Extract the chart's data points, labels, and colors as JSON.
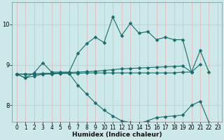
{
  "xlabel": "Humidex (Indice chaleur)",
  "background_color": "#cce8e8",
  "grid_color_v": "#e8b0b0",
  "grid_color_h": "#b0d0d0",
  "line_color": "#1a6b6b",
  "xlim": [
    -0.5,
    23.5
  ],
  "ylim": [
    7.6,
    10.55
  ],
  "xticks": [
    0,
    1,
    2,
    3,
    4,
    5,
    6,
    7,
    8,
    9,
    10,
    11,
    12,
    13,
    14,
    15,
    16,
    17,
    18,
    19,
    20,
    21,
    22,
    23
  ],
  "yticks": [
    8,
    9,
    10
  ],
  "x_vals": [
    0,
    1,
    2,
    3,
    4,
    5,
    6,
    7,
    8,
    9,
    10,
    11,
    12,
    13,
    14,
    15,
    16,
    17,
    18,
    19,
    20,
    21,
    22,
    23
  ],
  "line_max": [
    8.77,
    8.68,
    8.8,
    9.05,
    8.82,
    8.82,
    8.82,
    9.28,
    9.52,
    9.68,
    9.55,
    10.18,
    9.72,
    10.02,
    9.78,
    9.82,
    9.62,
    9.68,
    9.62,
    9.62,
    8.82,
    9.35,
    8.82,
    null
  ],
  "line_mean": [
    8.77,
    8.77,
    8.77,
    8.77,
    8.79,
    8.8,
    8.81,
    8.82,
    8.83,
    8.84,
    8.86,
    8.88,
    8.9,
    8.91,
    8.92,
    8.93,
    8.94,
    8.95,
    8.96,
    8.97,
    8.82,
    9.01,
    null,
    null
  ],
  "line_upper": [
    8.77,
    8.77,
    8.77,
    8.79,
    8.79,
    8.79,
    8.79,
    8.79,
    8.8,
    8.8,
    8.8,
    8.8,
    8.8,
    8.8,
    8.8,
    8.8,
    8.8,
    8.8,
    8.8,
    8.82,
    8.82,
    null,
    null,
    null
  ],
  "line_min": [
    8.77,
    8.68,
    8.72,
    8.77,
    8.77,
    8.79,
    8.79,
    8.5,
    8.28,
    8.06,
    7.88,
    7.74,
    7.62,
    7.58,
    7.56,
    7.62,
    7.7,
    7.72,
    7.74,
    7.76,
    8.0,
    8.1,
    7.58,
    null
  ],
  "marker": "D",
  "marker_size": 2.5,
  "linewidth": 0.8,
  "xlabel_fontsize": 6.5,
  "tick_fontsize": 5.5
}
